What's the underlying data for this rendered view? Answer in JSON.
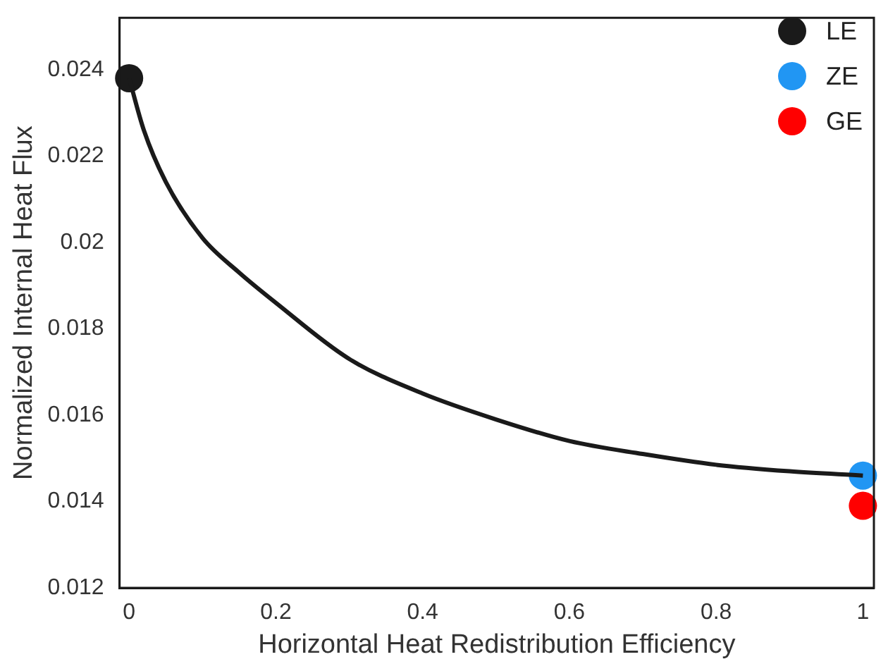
{
  "chart_data": {
    "type": "line",
    "xlabel": "Horizontal Heat Redistribution Efficiency",
    "ylabel": "Normalized Internal Heat Flux",
    "xlim": [
      -0.013,
      1.015
    ],
    "ylim": [
      0.012,
      0.0252
    ],
    "xticks": [
      0,
      0.2,
      0.4,
      0.6,
      0.8,
      1
    ],
    "yticks": [
      0.012,
      0.014,
      0.016,
      0.018,
      0.02,
      0.022,
      0.024
    ],
    "grid": false,
    "legend": "top right",
    "line_style": "solid",
    "series": [
      {
        "type": "line",
        "color": "#1a1a1a",
        "marker": "none",
        "x": [
          0,
          0.02,
          0.05,
          0.1,
          0.15,
          0.2,
          0.3,
          0.4,
          0.5,
          0.6,
          0.7,
          0.8,
          0.9,
          1
        ],
        "values": [
          0.0238,
          0.0226,
          0.0214,
          0.0201,
          0.0193,
          0.0186,
          0.0173,
          0.0165,
          0.0159,
          0.0154,
          0.0151,
          0.01485,
          0.0147,
          0.0146
        ]
      },
      {
        "type": "scatter",
        "name": "LE",
        "color": "#1a1a1a",
        "marker": "circle",
        "x": [
          0
        ],
        "values": [
          0.0238
        ]
      },
      {
        "type": "scatter",
        "name": "ZE",
        "color": "#2196f3",
        "marker": "circle",
        "x": [
          1
        ],
        "values": [
          0.0146
        ]
      },
      {
        "type": "scatter",
        "name": "GE",
        "color": "#ff0000",
        "marker": "circle",
        "x": [
          1
        ],
        "values": [
          0.0139
        ]
      }
    ]
  }
}
